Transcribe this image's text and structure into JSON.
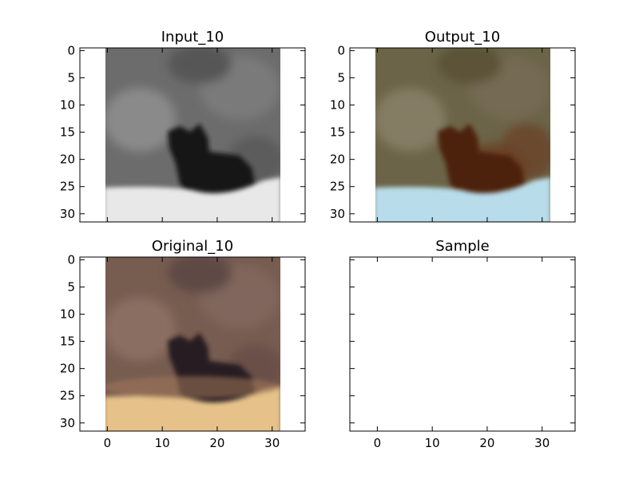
{
  "chart_data": [
    {
      "type": "heatmap",
      "title": "Input_10",
      "xlim": [
        -5,
        36
      ],
      "ylim": [
        31.5,
        -0.5
      ],
      "yticks": [
        0,
        5,
        10,
        15,
        20,
        25,
        30
      ],
      "show_xticklabels": false,
      "show_yticklabels": true,
      "image": {
        "kind": "grayscale",
        "extent": [
          -0.5,
          31.5,
          31.5,
          -0.5
        ],
        "subject": "dark animal silhouette against rocky background with light ground at bottom"
      }
    },
    {
      "type": "heatmap",
      "title": "Output_10",
      "xlim": [
        -5,
        36
      ],
      "ylim": [
        31.5,
        -0.5
      ],
      "yticks": [
        0,
        5,
        10,
        15,
        20,
        25,
        30
      ],
      "show_xticklabels": false,
      "show_yticklabels": true,
      "image": {
        "kind": "colorized",
        "extent": [
          -0.5,
          31.5,
          31.5,
          -0.5
        ],
        "colors": {
          "bg": "#6e6850",
          "subject": "#5a2a0e",
          "ground": "#b9dde9"
        }
      }
    },
    {
      "type": "heatmap",
      "title": "Original_10",
      "xlim": [
        -5,
        36
      ],
      "ylim": [
        31.5,
        -0.5
      ],
      "xticks": [
        0,
        10,
        20,
        30
      ],
      "yticks": [
        0,
        5,
        10,
        15,
        20,
        25,
        30
      ],
      "show_xticklabels": true,
      "show_yticklabels": true,
      "image": {
        "kind": "color",
        "extent": [
          -0.5,
          31.5,
          31.5,
          -0.5
        ],
        "colors": {
          "bg": "#7a5f52",
          "subject": "#2a1e22",
          "ground": "#e7c48c"
        }
      }
    },
    {
      "type": "heatmap",
      "title": "Sample",
      "xlim": [
        -5,
        36
      ],
      "ylim": [
        31.5,
        -0.5
      ],
      "xticks": [
        0,
        10,
        20,
        30
      ],
      "yticks": [
        0,
        5,
        10,
        15,
        20,
        25,
        30
      ],
      "show_xticklabels": true,
      "show_yticklabels": false,
      "image": null
    }
  ]
}
